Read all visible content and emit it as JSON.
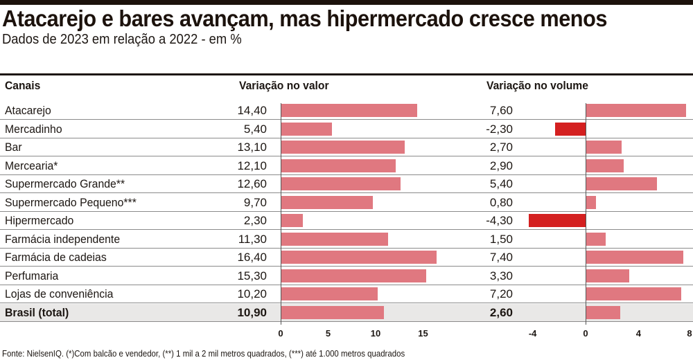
{
  "header": {
    "title": "Atacarejo e bares avançam, mas hipermercado cresce menos",
    "subtitle": "Dados de 2023 em relação a 2022 - em %"
  },
  "columns": {
    "channel": "Canais",
    "value": "Variação no valor",
    "volume": "Variação no volume"
  },
  "colors": {
    "positive_bar": "#e07880",
    "negative_bar": "#d42020",
    "total_row_bg": "#e9e8e7",
    "rule": "#1c120c"
  },
  "footnote": "Fonte: NielsenIQ. (*)Com balcão e vendedor, (**) 1 mil a 2 mil metros quadrados, (***) até 1.000 metros quadrados",
  "chart_data": {
    "type": "bar",
    "title": "Atacarejo e bares avançam, mas hipermercado cresce menos",
    "subtitle": "Dados de 2023 em relação a 2022 - em %",
    "orientation": "horizontal",
    "categories": [
      "Atacarejo",
      "Mercadinho",
      "Bar",
      "Mercearia*",
      "Supermercado Grande**",
      "Supermercado Pequeno***",
      "Hipermercado",
      "Farmácia independente",
      "Farmácia de cadeias",
      "Perfumaria",
      "Lojas de conveniência",
      "Brasil (total)"
    ],
    "series": [
      {
        "name": "Variação no valor",
        "values": [
          14.4,
          5.4,
          13.1,
          12.1,
          12.6,
          9.7,
          2.3,
          11.3,
          16.4,
          15.3,
          10.2,
          10.9
        ],
        "labels": [
          "14,40",
          "5,40",
          "13,10",
          "12,10",
          "12,60",
          "9,70",
          "2,30",
          "11,30",
          "16,40",
          "15,30",
          "10,20",
          "10,90"
        ],
        "xlim": [
          0,
          17
        ],
        "ticks": [
          0,
          5,
          10,
          15
        ],
        "tick_labels": [
          "0",
          "5",
          "10",
          "15"
        ]
      },
      {
        "name": "Variação no volume",
        "values": [
          7.6,
          -2.3,
          2.7,
          2.9,
          5.4,
          0.8,
          -4.3,
          1.5,
          7.4,
          3.3,
          7.2,
          2.6
        ],
        "labels": [
          "7,60",
          "-2,30",
          "2,70",
          "2,90",
          "5,40",
          "0,80",
          "-4,30",
          "1,50",
          "7,40",
          "3,30",
          "7,20",
          "2,60"
        ],
        "xlim": [
          -4.5,
          8
        ],
        "ticks": [
          -4,
          0,
          4,
          8
        ],
        "tick_labels": [
          "-4",
          "0",
          "4",
          "8"
        ]
      }
    ],
    "highlight_row": "Brasil (total)",
    "grid": false,
    "legend": "none",
    "source": "Fonte: NielsenIQ. (*)Com balcão e vendedor, (**) 1 mil a 2 mil metros quadrados, (***) até 1.000 metros quadrados"
  }
}
